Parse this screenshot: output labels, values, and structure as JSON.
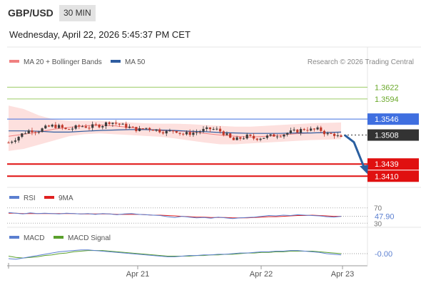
{
  "header": {
    "symbol": "GBP/USD",
    "timeframe": "30 MIN",
    "datetime": "Wednesday, April 22, 2026 5:45:37 PM CET"
  },
  "colors": {
    "bollinger": "#f08080",
    "bollinger_fill": "#fde0de",
    "ma50": "#2e5ca0",
    "resistance": "#9ccc65",
    "resistance_text": "#6aa82a",
    "pivot": "#3f6fe0",
    "support": "#e01010",
    "current": "#333333",
    "rsi": "#5b7fd0",
    "rsi_ma": "#e02020",
    "macd": "#5b7fd0",
    "macd_signal": "#5aa02c",
    "candle_up": "#3a3a3a",
    "candle_down": "#c0392b",
    "arrow": "#2a5fa0"
  },
  "chart_data": [
    {
      "type": "candlestick",
      "name": "price",
      "legend": [
        {
          "label": "MA 20 + Bollinger Bands",
          "color": "#f08080"
        },
        {
          "label": "MA 50",
          "color": "#2e5ca0"
        }
      ],
      "credit": "Research © 2026 Trading Central",
      "ylim": [
        1.3385,
        1.366
      ],
      "x_ticks": [
        "Apr 21",
        "Apr 22",
        "Apr 23"
      ],
      "levels": [
        {
          "value": 1.3622,
          "label": "1.3622",
          "role": "resistance"
        },
        {
          "value": 1.3594,
          "label": "1.3594",
          "role": "resistance"
        },
        {
          "value": 1.3546,
          "label": "1.3546",
          "role": "pivot"
        },
        {
          "value": 1.3508,
          "label": "1.3508",
          "role": "current"
        },
        {
          "value": 1.3439,
          "label": "1.3439",
          "role": "support"
        },
        {
          "value": 1.341,
          "label": "1.3410",
          "role": "support"
        }
      ],
      "close_path": [
        1.349,
        1.35,
        1.3512,
        1.352,
        1.3517,
        1.3525,
        1.353,
        1.3528,
        1.352,
        1.3525,
        1.353,
        1.3527,
        1.353,
        1.3532,
        1.354,
        1.3535,
        1.353,
        1.3525,
        1.352,
        1.3525,
        1.3522,
        1.3518,
        1.3515,
        1.352,
        1.351,
        1.3512,
        1.3515,
        1.352,
        1.3523,
        1.352,
        1.351,
        1.3495,
        1.35,
        1.3505,
        1.35,
        1.3502,
        1.3505,
        1.3508,
        1.351,
        1.3515,
        1.3518,
        1.3523,
        1.352,
        1.3522,
        1.351,
        1.351,
        1.35
      ],
      "ma20": [
        1.3505,
        1.351,
        1.3515,
        1.3522,
        1.3526,
        1.353,
        1.3532,
        1.353,
        1.3526,
        1.3522,
        1.3519,
        1.3518,
        1.3516,
        1.3512,
        1.3508,
        1.3505,
        1.3503,
        1.3505,
        1.3508,
        1.3511,
        1.3513,
        1.3514,
        1.3515
      ],
      "ma50": [
        1.3518,
        1.3518,
        1.3517,
        1.3515,
        1.3515,
        1.3517,
        1.3519,
        1.352,
        1.3521,
        1.3521,
        1.352,
        1.3519,
        1.3517,
        1.3516,
        1.3514,
        1.3513,
        1.3512,
        1.3512,
        1.3512,
        1.3513,
        1.3513,
        1.3514,
        1.3515
      ],
      "bb_upper": [
        1.3578,
        1.357,
        1.3555,
        1.3545,
        1.3542,
        1.3542,
        1.3542,
        1.354,
        1.3538,
        1.3536,
        1.3535,
        1.3535,
        1.3534,
        1.3532,
        1.353,
        1.3528,
        1.3528,
        1.353,
        1.3532,
        1.3534,
        1.3536,
        1.3537,
        1.3538
      ],
      "bb_lower": [
        1.347,
        1.3475,
        1.3485,
        1.3495,
        1.3505,
        1.351,
        1.3512,
        1.351,
        1.3508,
        1.3506,
        1.3504,
        1.35,
        1.3495,
        1.349,
        1.3486,
        1.3486,
        1.3488,
        1.349,
        1.3492,
        1.3494,
        1.3496,
        1.3497,
        1.3498
      ],
      "forecast": [
        1.3508,
        1.3439
      ]
    },
    {
      "type": "line",
      "name": "rsi",
      "legend": [
        {
          "label": "RSI",
          "color": "#5b7fd0"
        },
        {
          "label": "9MA",
          "color": "#e02020"
        }
      ],
      "ylim": [
        25,
        75
      ],
      "levels": [
        70,
        30
      ],
      "level_labels": [
        "70",
        "30"
      ],
      "value_label": "47.90",
      "rsi": [
        58,
        56,
        54,
        57,
        55,
        56,
        55,
        54,
        56,
        55,
        54,
        55,
        53,
        55,
        54,
        52,
        54,
        55,
        53,
        52,
        51,
        50,
        47,
        45,
        48,
        46,
        44,
        45,
        43,
        46,
        44,
        42,
        44,
        45,
        46,
        48,
        50,
        49,
        51,
        50,
        52,
        51,
        50,
        49,
        47,
        46,
        48
      ],
      "rsi_ma": [
        56,
        56,
        55,
        55,
        55,
        55,
        55,
        55,
        55,
        55,
        54,
        54,
        54,
        54,
        54,
        53,
        53,
        53,
        53,
        52,
        51,
        51,
        50,
        49,
        48,
        47,
        46,
        46,
        45,
        45,
        45,
        44,
        44,
        44,
        45,
        46,
        47,
        47,
        48,
        49,
        50,
        50,
        51,
        50,
        49,
        48,
        48
      ]
    },
    {
      "type": "line",
      "name": "macd",
      "legend": [
        {
          "label": "MACD",
          "color": "#5b7fd0"
        },
        {
          "label": "MACD Signal",
          "color": "#5aa02c"
        }
      ],
      "ylim": [
        -0.0016,
        0.0016
      ],
      "value_label": "-0.00",
      "macd": [
        -0.0008,
        -0.0009,
        -0.0007,
        -0.0005,
        -0.0003,
        -0.0001,
        0.0001,
        0.0003,
        0.0004,
        0.0005,
        0.0006,
        0.0006,
        0.0005,
        0.0004,
        0.0003,
        0.0002,
        0.0001,
        0.0,
        -0.0001,
        -0.0002,
        -0.0003,
        -0.0004,
        -0.0005,
        -0.0005,
        -0.0004,
        -0.0003,
        -0.0003,
        -0.0002,
        -0.0002,
        -0.0001,
        -0.0001,
        0.0,
        0.0001,
        0.0001,
        0.0002,
        0.0003,
        0.0003,
        0.0004,
        0.0004,
        0.0005,
        0.0005,
        0.0004,
        0.0003,
        0.0002,
        0.0,
        -0.0001,
        -0.0002
      ],
      "macd_signal": [
        -0.0004,
        -0.0006,
        -0.0007,
        -0.0006,
        -0.0005,
        -0.0003,
        -0.0002,
        0.0,
        0.0001,
        0.0003,
        0.0004,
        0.0005,
        0.0005,
        0.0005,
        0.0004,
        0.0003,
        0.0002,
        0.0001,
        0.0,
        -0.0001,
        -0.0002,
        -0.0003,
        -0.0004,
        -0.0004,
        -0.0004,
        -0.0004,
        -0.0003,
        -0.0003,
        -0.0002,
        -0.0002,
        -0.0001,
        -0.0001,
        0.0,
        0.0001,
        0.0001,
        0.0002,
        0.0002,
        0.0003,
        0.0003,
        0.0004,
        0.0004,
        0.0004,
        0.0004,
        0.0003,
        0.0002,
        0.0001,
        0.0
      ]
    }
  ]
}
